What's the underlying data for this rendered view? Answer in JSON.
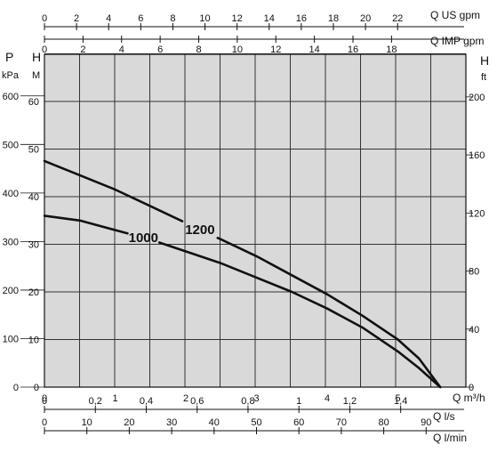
{
  "chart_data": {
    "type": "line",
    "grid": true,
    "background_color": "#d9d9d9",
    "line_color": "#111111",
    "x_primary": {
      "unit": "Q m³/h",
      "ticks": [
        "0",
        "1",
        "2",
        "3",
        "4",
        "5"
      ],
      "lim": [
        0,
        5.8
      ]
    },
    "y_primary": {
      "label": "H",
      "unit": "M",
      "ticks": [
        "0",
        "10",
        "20",
        "30",
        "40",
        "50",
        "60"
      ],
      "lim": [
        0,
        70
      ]
    },
    "y_pressure": {
      "label": "P",
      "unit": "kPa",
      "ticks": [
        "0",
        "100",
        "200",
        "300",
        "400",
        "500",
        "600"
      ]
    },
    "y_feet": {
      "label": "H",
      "unit": "ft",
      "ticks": [
        "0",
        "40",
        "80",
        "120",
        "160",
        "200"
      ]
    },
    "x_us_gpm": {
      "unit": "Q US gpm",
      "ticks": [
        "0",
        "2",
        "4",
        "6",
        "8",
        "10",
        "12",
        "14",
        "16",
        "18",
        "20",
        "22"
      ]
    },
    "x_imp_gpm": {
      "unit": "Q IMP gpm",
      "ticks": [
        "0",
        "2",
        "4",
        "6",
        "8",
        "10",
        "12",
        "14",
        "16",
        "18"
      ]
    },
    "x_ls": {
      "unit": "Q l/s",
      "ticks": [
        "0",
        "0,2",
        "0,4",
        "0,6",
        "0,8",
        "1",
        "1,2",
        "1,4"
      ]
    },
    "x_lmin": {
      "unit": "Q l/min",
      "ticks": [
        "0",
        "10",
        "20",
        "30",
        "40",
        "50",
        "60",
        "70",
        "80",
        "90"
      ]
    },
    "series": [
      {
        "name": "1000",
        "x": [
          0,
          0.5,
          1,
          1.5,
          2,
          2.5,
          3,
          3.5,
          4,
          4.5,
          5,
          5.3,
          5.6
        ],
        "y": [
          36,
          35,
          33,
          31,
          28.5,
          26,
          23,
          20,
          16.5,
          12.5,
          7.5,
          4,
          0
        ]
      },
      {
        "name": "1200",
        "x": [
          0,
          0.5,
          1,
          1.5,
          2,
          2.5,
          3,
          3.5,
          4,
          4.5,
          5,
          5.3,
          5.6
        ],
        "y": [
          47.5,
          44.5,
          41.5,
          38,
          34.5,
          31,
          27.5,
          23.5,
          19.5,
          15,
          10,
          6,
          0
        ]
      }
    ]
  }
}
